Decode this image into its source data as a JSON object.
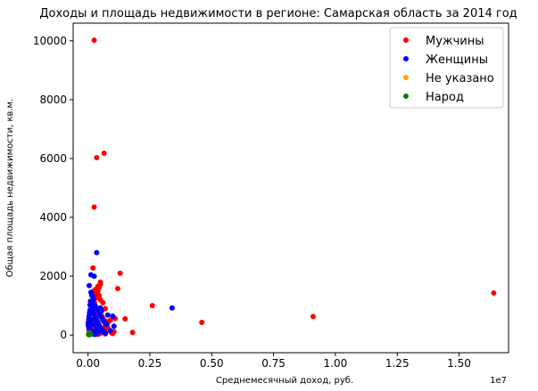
{
  "chart_data": {
    "type": "scatter",
    "title": "Доходы и площадь недвижимости в регионе: Самарская область за 2014 год",
    "xlabel": "Среднемесячный доход, руб.",
    "ylabel": "Общая площадь недвижимости, кв.м.",
    "x_offset_label": "1e7",
    "xlim": [
      -0.06,
      1.7
    ],
    "ylim": [
      -600,
      10600
    ],
    "x_ticks": [
      0.0,
      0.25,
      0.5,
      0.75,
      1.0,
      1.25,
      1.5
    ],
    "x_tick_labels": [
      "0.00",
      "0.25",
      "0.50",
      "0.75",
      "1.00",
      "1.25",
      "1.50"
    ],
    "y_ticks": [
      0,
      2000,
      4000,
      6000,
      8000,
      10000
    ],
    "y_tick_labels": [
      "0",
      "2000",
      "4000",
      "6000",
      "8000",
      "10000"
    ],
    "grid": false,
    "legend_position": "top-right",
    "series": [
      {
        "name": "Мужчины",
        "color": "#ff0000",
        "points": [
          [
            0.025,
            10020
          ],
          [
            0.065,
            6180
          ],
          [
            0.035,
            6030
          ],
          [
            0.025,
            4350
          ],
          [
            0.02,
            2280
          ],
          [
            0.13,
            2100
          ],
          [
            0.12,
            1580
          ],
          [
            1.64,
            1430
          ],
          [
            0.05,
            1800
          ],
          [
            0.04,
            1650
          ],
          [
            0.03,
            1550
          ],
          [
            0.02,
            1480
          ],
          [
            0.045,
            1350
          ],
          [
            0.05,
            1200
          ],
          [
            0.06,
            1100
          ],
          [
            0.025,
            950
          ],
          [
            0.07,
            900
          ],
          [
            0.035,
            850
          ],
          [
            0.15,
            550
          ],
          [
            0.26,
            1000
          ],
          [
            0.46,
            430
          ],
          [
            0.91,
            630
          ],
          [
            0.18,
            90
          ],
          [
            0.11,
            560
          ],
          [
            0.09,
            500
          ],
          [
            0.08,
            420
          ],
          [
            0.07,
            300
          ],
          [
            0.065,
            200
          ],
          [
            0.055,
            650
          ],
          [
            0.045,
            720
          ],
          [
            0.04,
            450
          ],
          [
            0.03,
            380
          ],
          [
            0.028,
            300
          ],
          [
            0.02,
            250
          ],
          [
            0.018,
            200
          ],
          [
            0.015,
            150
          ],
          [
            0.012,
            100
          ],
          [
            0.01,
            60
          ],
          [
            0.008,
            40
          ],
          [
            0.006,
            80
          ],
          [
            0.005,
            120
          ],
          [
            0.004,
            180
          ],
          [
            0.003,
            250
          ],
          [
            0.002,
            320
          ],
          [
            0.001,
            400
          ],
          [
            0.003,
            520
          ],
          [
            0.006,
            600
          ],
          [
            0.009,
            700
          ],
          [
            0.012,
            780
          ],
          [
            0.016,
            860
          ],
          [
            0.022,
            980
          ],
          [
            0.026,
            1100
          ],
          [
            0.03,
            1250
          ],
          [
            0.035,
            1380
          ],
          [
            0.04,
            1500
          ],
          [
            0.045,
            1620
          ],
          [
            0.05,
            1720
          ],
          [
            0.06,
            580
          ],
          [
            0.07,
            480
          ],
          [
            0.075,
            350
          ],
          [
            0.08,
            260
          ],
          [
            0.085,
            150
          ],
          [
            0.095,
            80
          ],
          [
            0.1,
            50
          ],
          [
            0.105,
            120
          ],
          [
            0.07,
            40
          ],
          [
            0.06,
            100
          ],
          [
            0.05,
            60
          ],
          [
            0.04,
            20
          ],
          [
            0.03,
            90
          ],
          [
            0.025,
            30
          ]
        ]
      },
      {
        "name": "Женщины",
        "color": "#0000ff",
        "points": [
          [
            0.035,
            2800
          ],
          [
            0.012,
            2050
          ],
          [
            0.025,
            2000
          ],
          [
            0.005,
            1680
          ],
          [
            0.012,
            1450
          ],
          [
            0.02,
            1300
          ],
          [
            0.01,
            1150
          ],
          [
            0.008,
            1020
          ],
          [
            0.34,
            920
          ],
          [
            0.1,
            640
          ],
          [
            0.08,
            680
          ],
          [
            0.105,
            300
          ],
          [
            0.09,
            150
          ],
          [
            0.015,
            900
          ],
          [
            0.02,
            800
          ],
          [
            0.025,
            700
          ],
          [
            0.03,
            600
          ],
          [
            0.035,
            500
          ],
          [
            0.04,
            400
          ],
          [
            0.045,
            330
          ],
          [
            0.05,
            260
          ],
          [
            0.055,
            200
          ],
          [
            0.06,
            140
          ],
          [
            0.065,
            90
          ],
          [
            0.07,
            60
          ],
          [
            0.008,
            850
          ],
          [
            0.006,
            760
          ],
          [
            0.004,
            640
          ],
          [
            0.003,
            540
          ],
          [
            0.002,
            440
          ],
          [
            0.001,
            340
          ],
          [
            0.004,
            260
          ],
          [
            0.006,
            200
          ],
          [
            0.008,
            150
          ],
          [
            0.01,
            110
          ],
          [
            0.013,
            80
          ],
          [
            0.016,
            60
          ],
          [
            0.02,
            40
          ],
          [
            0.024,
            30
          ],
          [
            0.028,
            20
          ],
          [
            0.032,
            50
          ],
          [
            0.038,
            80
          ],
          [
            0.042,
            120
          ],
          [
            0.048,
            700
          ],
          [
            0.052,
            620
          ],
          [
            0.058,
            560
          ],
          [
            0.062,
            480
          ],
          [
            0.068,
            420
          ],
          [
            0.075,
            360
          ],
          [
            0.018,
            1100
          ],
          [
            0.022,
            1200
          ],
          [
            0.015,
            1350
          ],
          [
            0.03,
            980
          ],
          [
            0.04,
            880
          ],
          [
            0.044,
            780
          ],
          [
            0.05,
            920
          ],
          [
            0.055,
            820
          ],
          [
            0.03,
            150
          ],
          [
            0.035,
            240
          ],
          [
            0.012,
            450
          ],
          [
            0.016,
            520
          ],
          [
            0.02,
            360
          ]
        ]
      },
      {
        "name": "Не указано",
        "color": "#ffa500",
        "points": [
          [
            0.003,
            30
          ],
          [
            0.006,
            60
          ]
        ]
      },
      {
        "name": "Народ",
        "color": "#008000",
        "points": [
          [
            0.002,
            20
          ],
          [
            0.004,
            10
          ],
          [
            0.006,
            40
          ],
          [
            0.008,
            15
          ],
          [
            0.01,
            25
          ]
        ]
      }
    ]
  }
}
